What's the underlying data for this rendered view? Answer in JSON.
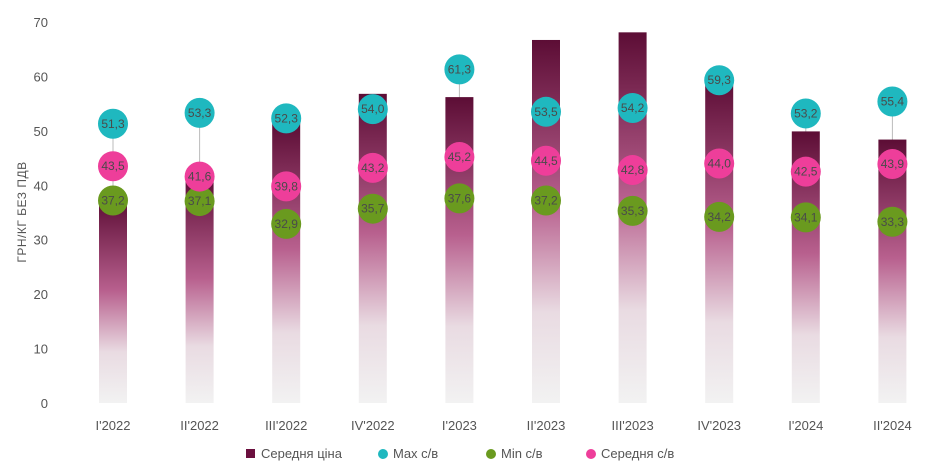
{
  "chart_data": {
    "type": "bar",
    "ylabel": "ГРН/КГ БЕЗ ПДВ",
    "xlabel": "",
    "ylim": [
      0,
      70
    ],
    "yticks": [
      0,
      10,
      20,
      30,
      40,
      50,
      60,
      70
    ],
    "grid": false,
    "legend_position": "bottom",
    "categories": [
      "І'2022",
      "ІІ'2022",
      "ІІІ'2022",
      "ІV'2022",
      "І'2023",
      "ІІ'2023",
      "ІІІ'2023",
      "ІV'2023",
      "І'2024",
      "ІІ'2024"
    ],
    "series": [
      {
        "name": "Середня ціна",
        "kind": "bar",
        "color": "#6b0f3e",
        "values": [
          37.5,
          41.6,
          51.5,
          56.8,
          56.2,
          66.7,
          68.1,
          59.3,
          49.9,
          48.4
        ],
        "labels": []
      },
      {
        "name": "Max с/в",
        "kind": "marker",
        "color": "#1fb8bf",
        "values": [
          51.3,
          53.3,
          52.3,
          54.0,
          61.3,
          53.5,
          54.2,
          59.3,
          53.2,
          55.4
        ],
        "labels": [
          "51,3",
          "53,3",
          "52,3",
          "54,0",
          "61,3",
          "53,5",
          "54,2",
          "59,3",
          "53,2",
          "55,4"
        ]
      },
      {
        "name": "Min с/в",
        "kind": "marker",
        "color": "#6a9a1f",
        "values": [
          37.2,
          37.1,
          32.9,
          35.7,
          37.6,
          37.2,
          35.3,
          34.2,
          34.1,
          33.3
        ],
        "labels": [
          "37,2",
          "37,1",
          "32,9",
          "35,7",
          "37,6",
          "37,2",
          "35,3",
          "34,2",
          "34,1",
          "33,3"
        ]
      },
      {
        "name": "Середня с/в",
        "kind": "marker",
        "color": "#ee3e9a",
        "values": [
          43.5,
          41.6,
          39.8,
          43.2,
          45.2,
          44.5,
          42.8,
          44.0,
          42.5,
          43.9
        ],
        "labels": [
          "43,5",
          "41,6",
          "39,8",
          "43,2",
          "45,2",
          "44,5",
          "42,8",
          "44,0",
          "42,5",
          "43,9"
        ]
      }
    ]
  }
}
